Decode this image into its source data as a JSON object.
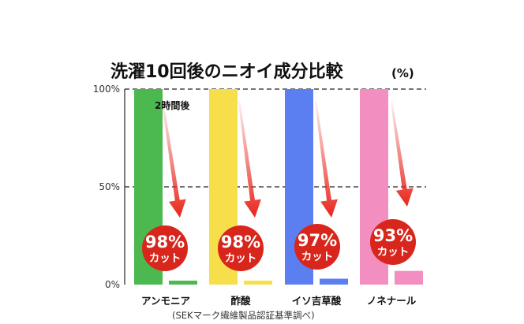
{
  "chart_data": {
    "type": "bar",
    "title": "洗濯10回後のニオイ成分比較",
    "title_unit": "(%)",
    "categories": [
      "アンモニア",
      "酢酸",
      "イソ吉草酸",
      "ノネナール"
    ],
    "series": [
      {
        "values": [
          100,
          100,
          100,
          100
        ]
      },
      {
        "values": [
          2,
          2,
          3,
          7
        ]
      }
    ],
    "reduction_labels": [
      "98%",
      "98%",
      "97%",
      "93%"
    ],
    "reduction_suffix": "カット",
    "annotation": "2時間後",
    "yticks": [
      "100%",
      "50%",
      "0%"
    ],
    "ylim": [
      0,
      100
    ],
    "grid": "dashed at 50% and 100%",
    "source_note": "(SEKマーク繊維製品認証基準調べ)",
    "colors": {
      "bars": [
        "#4cb850",
        "#f6df4a",
        "#5b7ff0",
        "#f28ec0"
      ],
      "bars_after": [
        "#4cb850",
        "#f6df4a",
        "#5b7ff0",
        "#f28ec0"
      ],
      "badge": "#d9261c",
      "arrow": "#e8261b"
    }
  }
}
